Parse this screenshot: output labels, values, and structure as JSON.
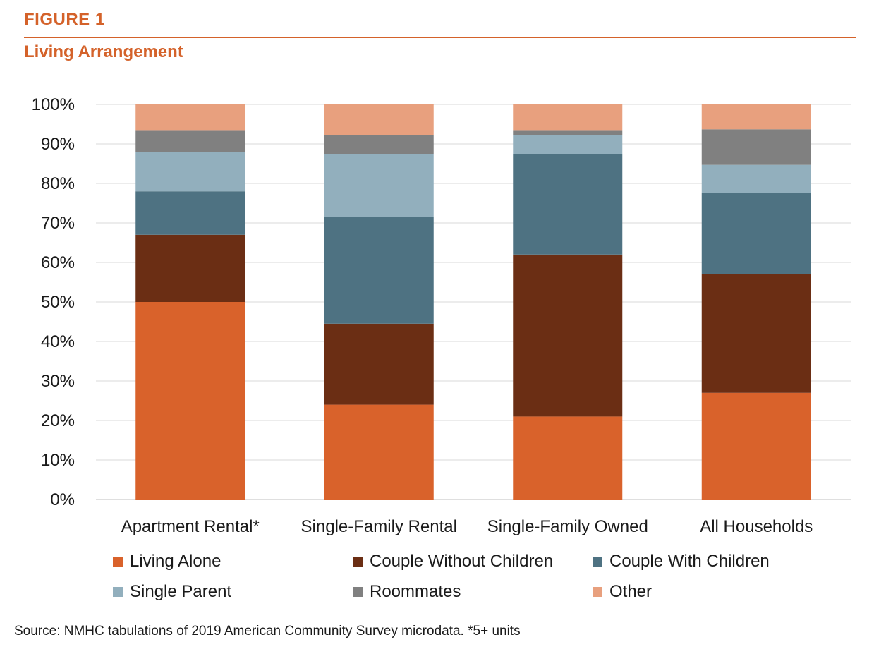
{
  "figure": {
    "label": "FIGURE 1",
    "title": "Living Arrangement",
    "source": "Source: NMHC tabulations of 2019 American Community Survey microdata. *5+ units"
  },
  "chart_data": {
    "type": "bar",
    "stacked": true,
    "categories": [
      "Apartment Rental*",
      "Single-Family Rental",
      "Single-Family Owned",
      "All Households"
    ],
    "series": [
      {
        "name": "Living Alone",
        "color": "#d9622b",
        "values": [
          50,
          24,
          21,
          27
        ]
      },
      {
        "name": "Couple Without Children",
        "color": "#6b2e14",
        "values": [
          17,
          20.5,
          41,
          30
        ]
      },
      {
        "name": "Couple With Children",
        "color": "#4e7282",
        "values": [
          11,
          27,
          25.5,
          20.5
        ]
      },
      {
        "name": "Single Parent",
        "color": "#92afbd",
        "values": [
          10,
          16,
          4.8,
          7.2
        ]
      },
      {
        "name": "Roommates",
        "color": "#808080",
        "values": [
          5.5,
          4.7,
          1.2,
          9
        ]
      },
      {
        "name": "Other",
        "color": "#e8a07e",
        "values": [
          6.5,
          7.8,
          6.5,
          6.3
        ]
      }
    ],
    "ylim": [
      0,
      100
    ],
    "yticks": [
      "0%",
      "10%",
      "20%",
      "30%",
      "40%",
      "50%",
      "60%",
      "70%",
      "80%",
      "90%",
      "100%"
    ],
    "grid": true,
    "legend_position": "bottom"
  }
}
